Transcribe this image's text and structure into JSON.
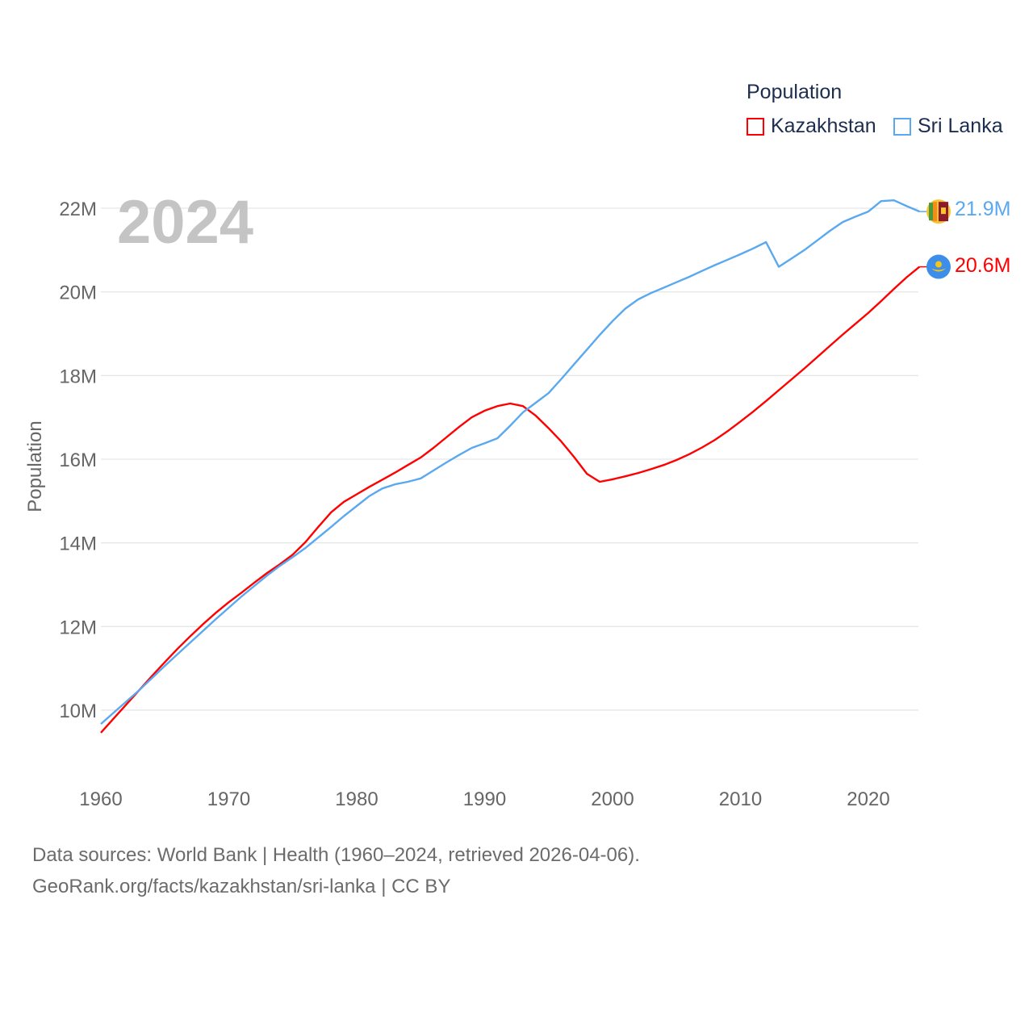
{
  "chart_data": {
    "type": "line",
    "title": "Population",
    "ylabel": "Population",
    "xlabel": "",
    "year_label": "2024",
    "xlim": [
      1960,
      2024
    ],
    "ylim": [
      9,
      22.6
    ],
    "x_ticks": [
      "1960",
      "1970",
      "1980",
      "1990",
      "2000",
      "2010",
      "2020"
    ],
    "y_ticks": [
      {
        "value": 10,
        "label": "10M"
      },
      {
        "value": 12,
        "label": "12M"
      },
      {
        "value": 14,
        "label": "14M"
      },
      {
        "value": 16,
        "label": "16M"
      },
      {
        "value": 18,
        "label": "18M"
      },
      {
        "value": 20,
        "label": "20M"
      },
      {
        "value": 22,
        "label": "22M"
      }
    ],
    "grid": true,
    "legend_position": "top-right",
    "x_start": 1960,
    "series": [
      {
        "name": "Kazakhstan",
        "color": "#ff0000",
        "end_label": "20.6M",
        "flag": "kazakhstan-flag",
        "values": [
          9.46,
          9.8,
          10.14,
          10.48,
          10.82,
          11.15,
          11.47,
          11.77,
          12.06,
          12.33,
          12.58,
          12.81,
          13.05,
          13.28,
          13.49,
          13.72,
          14.02,
          14.38,
          14.73,
          14.98,
          15.16,
          15.34,
          15.51,
          15.68,
          15.86,
          16.04,
          16.27,
          16.52,
          16.77,
          17.0,
          17.16,
          17.27,
          17.33,
          17.27,
          17.04,
          16.74,
          16.42,
          16.05,
          15.65,
          15.46,
          15.52,
          15.59,
          15.67,
          15.76,
          15.86,
          15.98,
          16.12,
          16.28,
          16.46,
          16.67,
          16.9,
          17.14,
          17.39,
          17.65,
          17.91,
          18.17,
          18.44,
          18.71,
          18.98,
          19.24,
          19.5,
          19.78,
          20.07,
          20.35,
          20.6
        ]
      },
      {
        "name": "Sri Lanka",
        "color": "#5aa9f0",
        "end_label": "21.9M",
        "flag": "sri-lanka-flag",
        "values": [
          9.67,
          9.94,
          10.21,
          10.48,
          10.77,
          11.06,
          11.34,
          11.62,
          11.9,
          12.18,
          12.45,
          12.72,
          12.97,
          13.22,
          13.45,
          13.66,
          13.88,
          14.13,
          14.38,
          14.64,
          14.88,
          15.12,
          15.3,
          15.4,
          15.46,
          15.54,
          15.73,
          15.92,
          16.1,
          16.27,
          16.38,
          16.5,
          16.8,
          17.12,
          17.35,
          17.58,
          17.92,
          18.27,
          18.62,
          18.97,
          19.3,
          19.6,
          19.82,
          19.97,
          20.1,
          20.23,
          20.36,
          20.5,
          20.64,
          20.77,
          20.9,
          21.04,
          21.19,
          20.6,
          20.8,
          21.0,
          21.23,
          21.46,
          21.67,
          21.8,
          21.92,
          22.17,
          22.19,
          22.05,
          21.92
        ]
      }
    ]
  },
  "footer": {
    "line1": "Data sources: World Bank | Health (1960–2024, retrieved 2026-04-06).",
    "line2": "GeoRank.org/facts/kazakhstan/sri-lanka | CC BY"
  }
}
